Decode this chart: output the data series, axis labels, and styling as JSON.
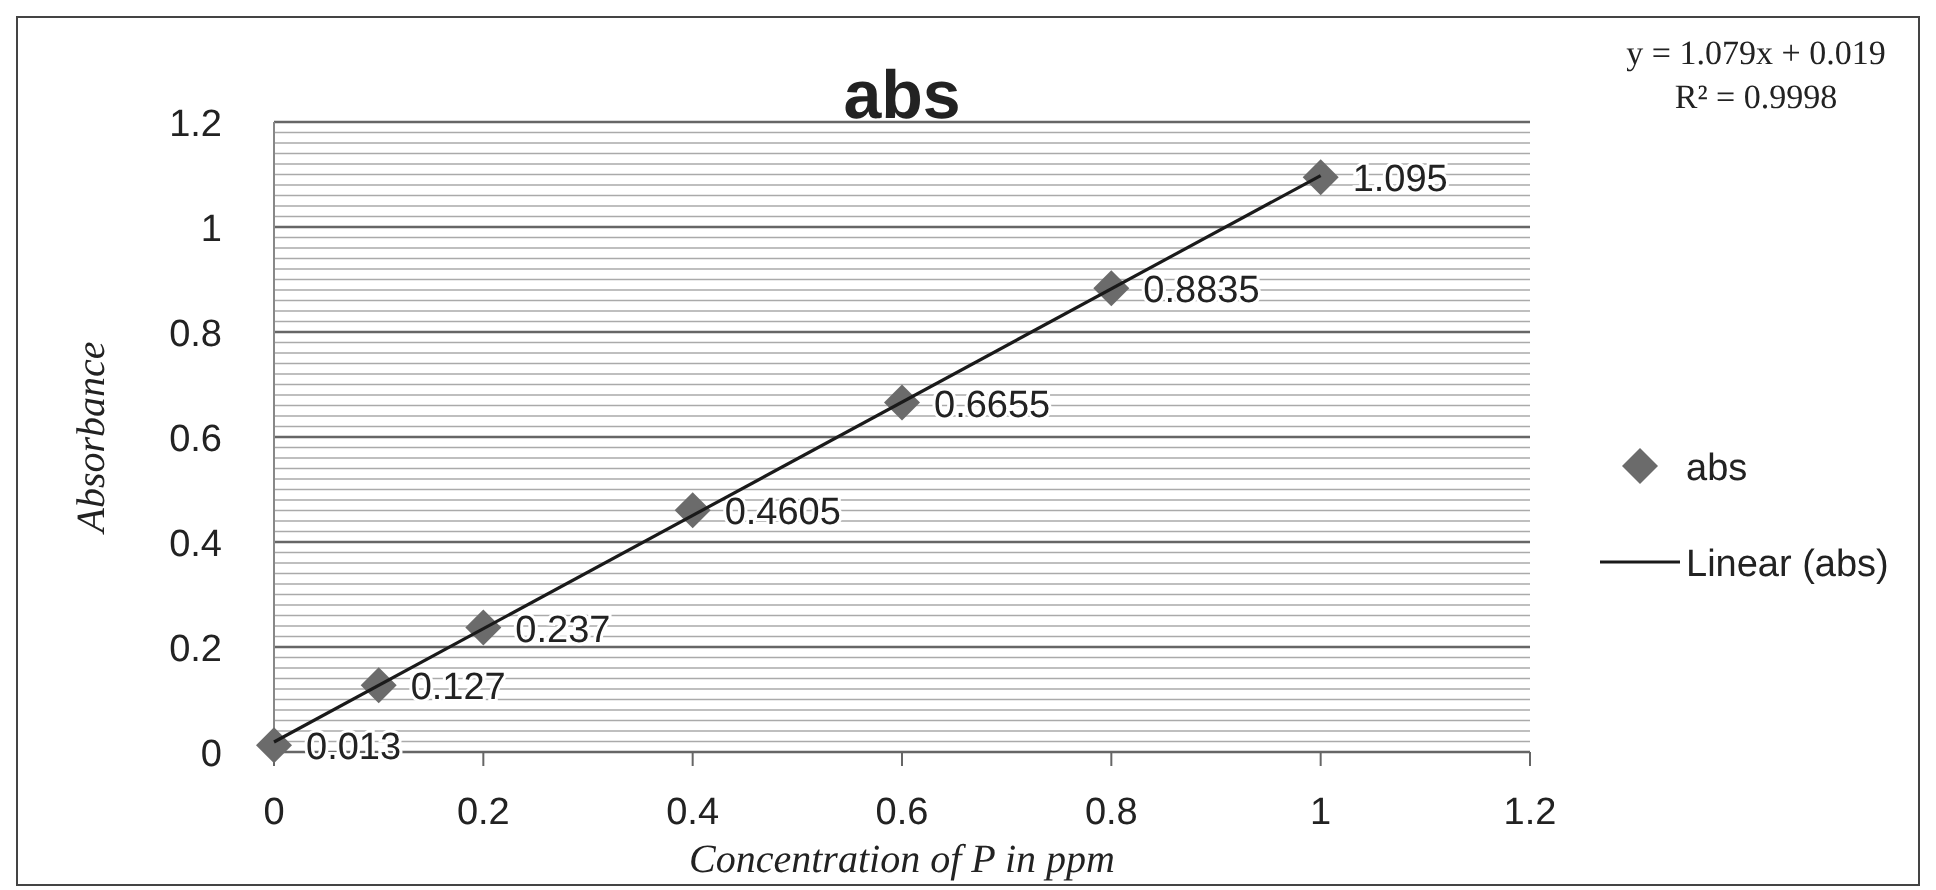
{
  "chart_data": {
    "type": "scatter",
    "title": "abs",
    "xlabel": "Concentration  of P in ppm",
    "ylabel": "Absorbance",
    "annotations": [
      "y = 1.079x + 0.019",
      "R² = 0.9998"
    ],
    "xlim": [
      0,
      1.2
    ],
    "xticks": [
      0,
      0.2,
      0.4,
      0.6,
      0.8,
      1,
      1.2
    ],
    "ylim": [
      0,
      1.2
    ],
    "yticks": [
      0,
      {
        "value": 0.02,
        "label": null
      },
      {
        "value": 0.04,
        "label": null
      },
      {
        "value": 0.06,
        "label": null
      },
      {
        "value": 0.08,
        "label": null
      },
      {
        "value": 0.1,
        "label": null
      },
      {
        "value": 0.12,
        "label": null
      },
      {
        "value": 0.14,
        "label": null
      },
      {
        "value": 0.16,
        "label": null
      },
      {
        "value": 0.18,
        "label": null
      },
      0.2,
      {
        "value": 0.22,
        "label": null
      },
      {
        "value": 0.24,
        "label": null
      },
      {
        "value": 0.26,
        "label": null
      },
      {
        "value": 0.28,
        "label": null
      },
      {
        "value": 0.3,
        "label": null
      },
      {
        "value": 0.32,
        "label": null
      },
      {
        "value": 0.34,
        "label": null
      },
      {
        "value": 0.36,
        "label": null
      },
      {
        "value": 0.38,
        "label": null
      },
      0.4,
      {
        "value": 0.42,
        "label": null
      },
      {
        "value": 0.44,
        "label": null
      },
      {
        "value": 0.46,
        "label": null
      },
      {
        "value": 0.48,
        "label": null
      },
      {
        "value": 0.5,
        "label": null
      },
      {
        "value": 0.52,
        "label": null
      },
      {
        "value": 0.54,
        "label": null
      },
      {
        "value": 0.56,
        "label": null
      },
      {
        "value": 0.58,
        "label": null
      },
      0.6,
      {
        "value": 0.62,
        "label": null
      },
      {
        "value": 0.64,
        "label": null
      },
      {
        "value": 0.66,
        "label": null
      },
      {
        "value": 0.68,
        "label": null
      },
      {
        "value": 0.7,
        "label": null
      },
      {
        "value": 0.72,
        "label": null
      },
      {
        "value": 0.74,
        "label": null
      },
      {
        "value": 0.76,
        "label": null
      },
      {
        "value": 0.78,
        "label": null
      },
      0.8,
      {
        "value": 0.82,
        "label": null
      },
      {
        "value": 0.84,
        "label": null
      },
      {
        "value": 0.86,
        "label": null
      },
      {
        "value": 0.88,
        "label": null
      },
      {
        "value": 0.9,
        "label": null
      },
      {
        "value": 0.92,
        "label": null
      },
      {
        "value": 0.94,
        "label": null
      },
      {
        "value": 0.96,
        "label": null
      },
      {
        "value": 0.98,
        "label": null
      },
      1,
      {
        "value": 1.02,
        "label": null
      },
      {
        "value": 1.04,
        "label": null
      },
      {
        "value": 1.06,
        "label": null
      },
      {
        "value": 1.08,
        "label": null
      },
      {
        "value": 1.1,
        "label": null
      },
      {
        "value": 1.12,
        "label": null
      },
      {
        "value": 1.14,
        "label": null
      },
      {
        "value": 1.16,
        "label": null
      },
      {
        "value": 1.18,
        "label": null
      },
      1.2
    ],
    "grid": "y",
    "legend": "right",
    "marker": "diamond",
    "series": [
      {
        "name": "abs",
        "color": "#6b6b6b",
        "x": [
          0,
          0.1,
          0.2,
          0.4,
          0.6,
          0.8,
          1
        ],
        "values": [
          0.013,
          0.127,
          0.237,
          0.4605,
          0.6655,
          0.8835,
          1.095
        ],
        "value_labels": [
          "0.013",
          "0.127",
          "0.237",
          "0.4605",
          "0.6655",
          "0.8835",
          "1.095"
        ]
      },
      {
        "name": "Linear (abs)",
        "type": "line",
        "marker": "none",
        "color": "#1a1a1a",
        "x": [
          0,
          1
        ],
        "values": [
          0.019,
          1.098
        ]
      }
    ]
  }
}
